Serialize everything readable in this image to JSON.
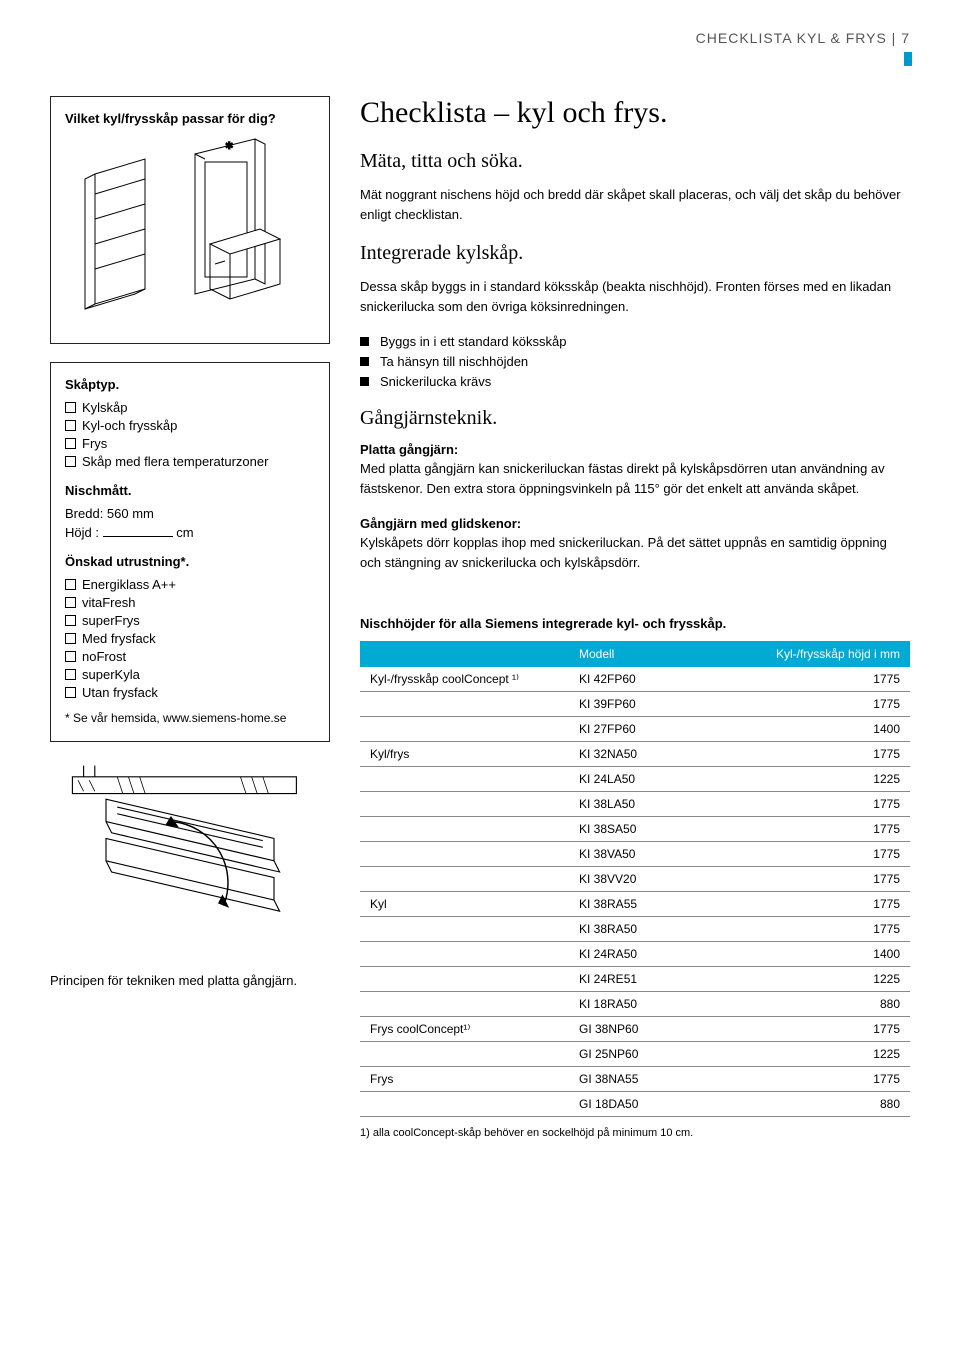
{
  "header": {
    "title": "CHECKLISTA KYL & FRYS | 7"
  },
  "left": {
    "q_title": "Vilket kyl/frysskåp passar för dig?",
    "skap_title": "Skåptyp.",
    "skap_items": [
      "Kylskåp",
      "Kyl-och frysskåp",
      "Frys",
      "Skåp med flera temperaturzoner"
    ],
    "nisch_title": "Nischmått.",
    "nisch_bredd": "Bredd: 560 mm",
    "nisch_hojd_label": "Höjd :",
    "nisch_hojd_unit": "cm",
    "utrust_title": "Önskad utrustning*.",
    "utrust_items": [
      "Energiklass A++",
      "vitaFresh",
      "superFrys",
      "Med frysfack",
      "noFrost",
      "superKyla",
      "Utan frysfack"
    ],
    "hemsida": "* Se vår hemsida, www.siemens-home.se",
    "hinge_caption": "Principen för tekniken med platta gångjärn."
  },
  "right": {
    "main_title": "Checklista – kyl och frys.",
    "sub1": "Mäta, titta och söka.",
    "p1": "Mät noggrant nischens höjd och bredd där skåpet skall placeras, och välj det skåp du behöver enligt checklistan.",
    "sub2": "Integrerade kylskåp.",
    "p2": "Dessa skåp byggs in i standard köksskåp (beakta nischhöjd). Fronten förses med en likadan snickerilucka som den övriga köksinredningen.",
    "bullets": [
      "Byggs in i ett standard köksskåp",
      "Ta hänsyn till nischhöjden",
      "Snickerilucka krävs"
    ],
    "sub3": "Gångjärnsteknik.",
    "pg_title": "Platta gångjärn:",
    "pg_text": "Med platta gångjärn kan snickeriluckan fästas direkt på kylskåpsdörren utan användning av fästskenor. Den extra stora öppningsvinkeln på 115° gör det enkelt att använda skåpet.",
    "gg_title": "Gångjärn med glidskenor:",
    "gg_text": "Kylskåpets dörr kopplas ihop med snickeriluckan. På det sättet uppnås en samtidig öppning och stängning av snickerilucka och kylskåpsdörr.",
    "table_title": "Nischhöjder för alla Siemens integrerade kyl- och frysskåp.",
    "table_headers": [
      "",
      "Modell",
      "Kyl-/frysskåp höjd i mm"
    ],
    "table_rows": [
      {
        "cat": "Kyl-/frysskåp coolConcept ¹⁾",
        "model": "KI 42FP60",
        "h": "1775"
      },
      {
        "cat": "",
        "model": "KI 39FP60",
        "h": "1775"
      },
      {
        "cat": "",
        "model": "KI 27FP60",
        "h": "1400"
      },
      {
        "cat": "Kyl/frys",
        "model": "KI 32NA50",
        "h": "1775"
      },
      {
        "cat": "",
        "model": "KI 24LA50",
        "h": "1225"
      },
      {
        "cat": "",
        "model": "KI 38LA50",
        "h": "1775"
      },
      {
        "cat": "",
        "model": "KI 38SA50",
        "h": "1775"
      },
      {
        "cat": "",
        "model": "KI 38VA50",
        "h": "1775"
      },
      {
        "cat": "",
        "model": "KI 38VV20",
        "h": "1775"
      },
      {
        "cat": "Kyl",
        "model": "KI 38RA55",
        "h": "1775"
      },
      {
        "cat": "",
        "model": "KI 38RA50",
        "h": "1775"
      },
      {
        "cat": "",
        "model": "KI 24RA50",
        "h": "1400"
      },
      {
        "cat": "",
        "model": "KI 24RE51",
        "h": "1225"
      },
      {
        "cat": "",
        "model": "KI 18RA50",
        "h": "880"
      },
      {
        "cat": "Frys coolConcept¹⁾",
        "model": "GI 38NP60",
        "h": "1775"
      },
      {
        "cat": "",
        "model": "GI 25NP60",
        "h": "1225"
      },
      {
        "cat": "Frys",
        "model": "GI 38NA55",
        "h": "1775"
      },
      {
        "cat": "",
        "model": "GI 18DA50",
        "h": "880"
      }
    ],
    "footnote": "1) alla coolConcept-skåp behöver en sockelhöjd på minimum 10 cm."
  },
  "colors": {
    "accent": "#00aad2",
    "header_text": "#666666"
  }
}
